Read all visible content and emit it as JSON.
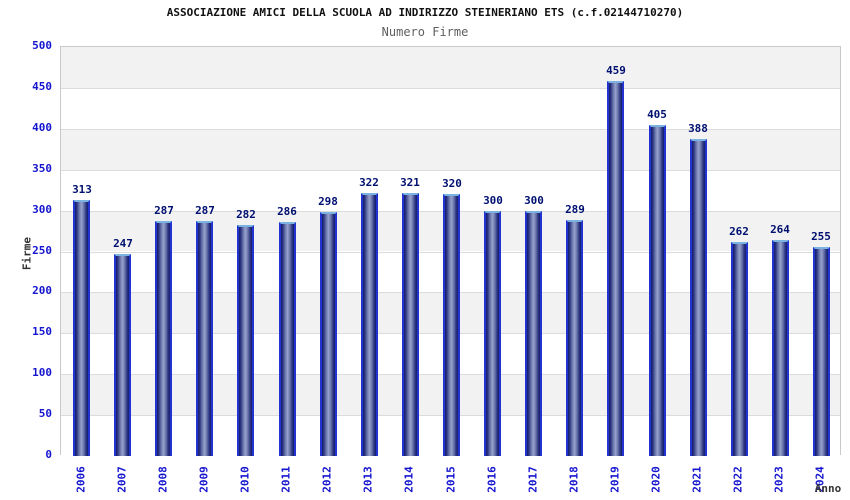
{
  "chart_data": {
    "type": "bar",
    "title": "ASSOCIAZIONE AMICI DELLA SCUOLA AD INDIRIZZO STEINERIANO ETS (c.f.02144710270)",
    "subtitle": "Numero Firme",
    "xlabel": "Anno",
    "ylabel": "Firme",
    "categories": [
      "2006",
      "2007",
      "2008",
      "2009",
      "2010",
      "2011",
      "2012",
      "2013",
      "2014",
      "2015",
      "2016",
      "2017",
      "2018",
      "2019",
      "2020",
      "2021",
      "2022",
      "2023",
      "2024"
    ],
    "values": [
      313,
      247,
      287,
      287,
      282,
      286,
      298,
      322,
      321,
      320,
      300,
      300,
      289,
      459,
      405,
      388,
      262,
      264,
      255
    ],
    "ylim": [
      0,
      500
    ],
    "ytick_step": 50,
    "yticks": [
      "0",
      "50",
      "100",
      "150",
      "200",
      "250",
      "300",
      "350",
      "400",
      "450",
      "500"
    ],
    "grid": true,
    "legend_position": "none",
    "band_colors": [
      "#f2f2f2",
      "#ffffff"
    ],
    "colors": {
      "bar_edge_blue": "#2333cf",
      "bar_body_dark": "#15206b",
      "bar_body_light": "#99a3ce",
      "bar_top_cap": "#7ab2e2",
      "tick_text": "#1515cf",
      "value_label_text": "#001070",
      "title_text": "#111111",
      "subtitle_text": "#5f5f5f",
      "axis_label_text": "#333333",
      "gridline": "#dcdcdc",
      "plot_border": "#c9c9c9"
    }
  }
}
